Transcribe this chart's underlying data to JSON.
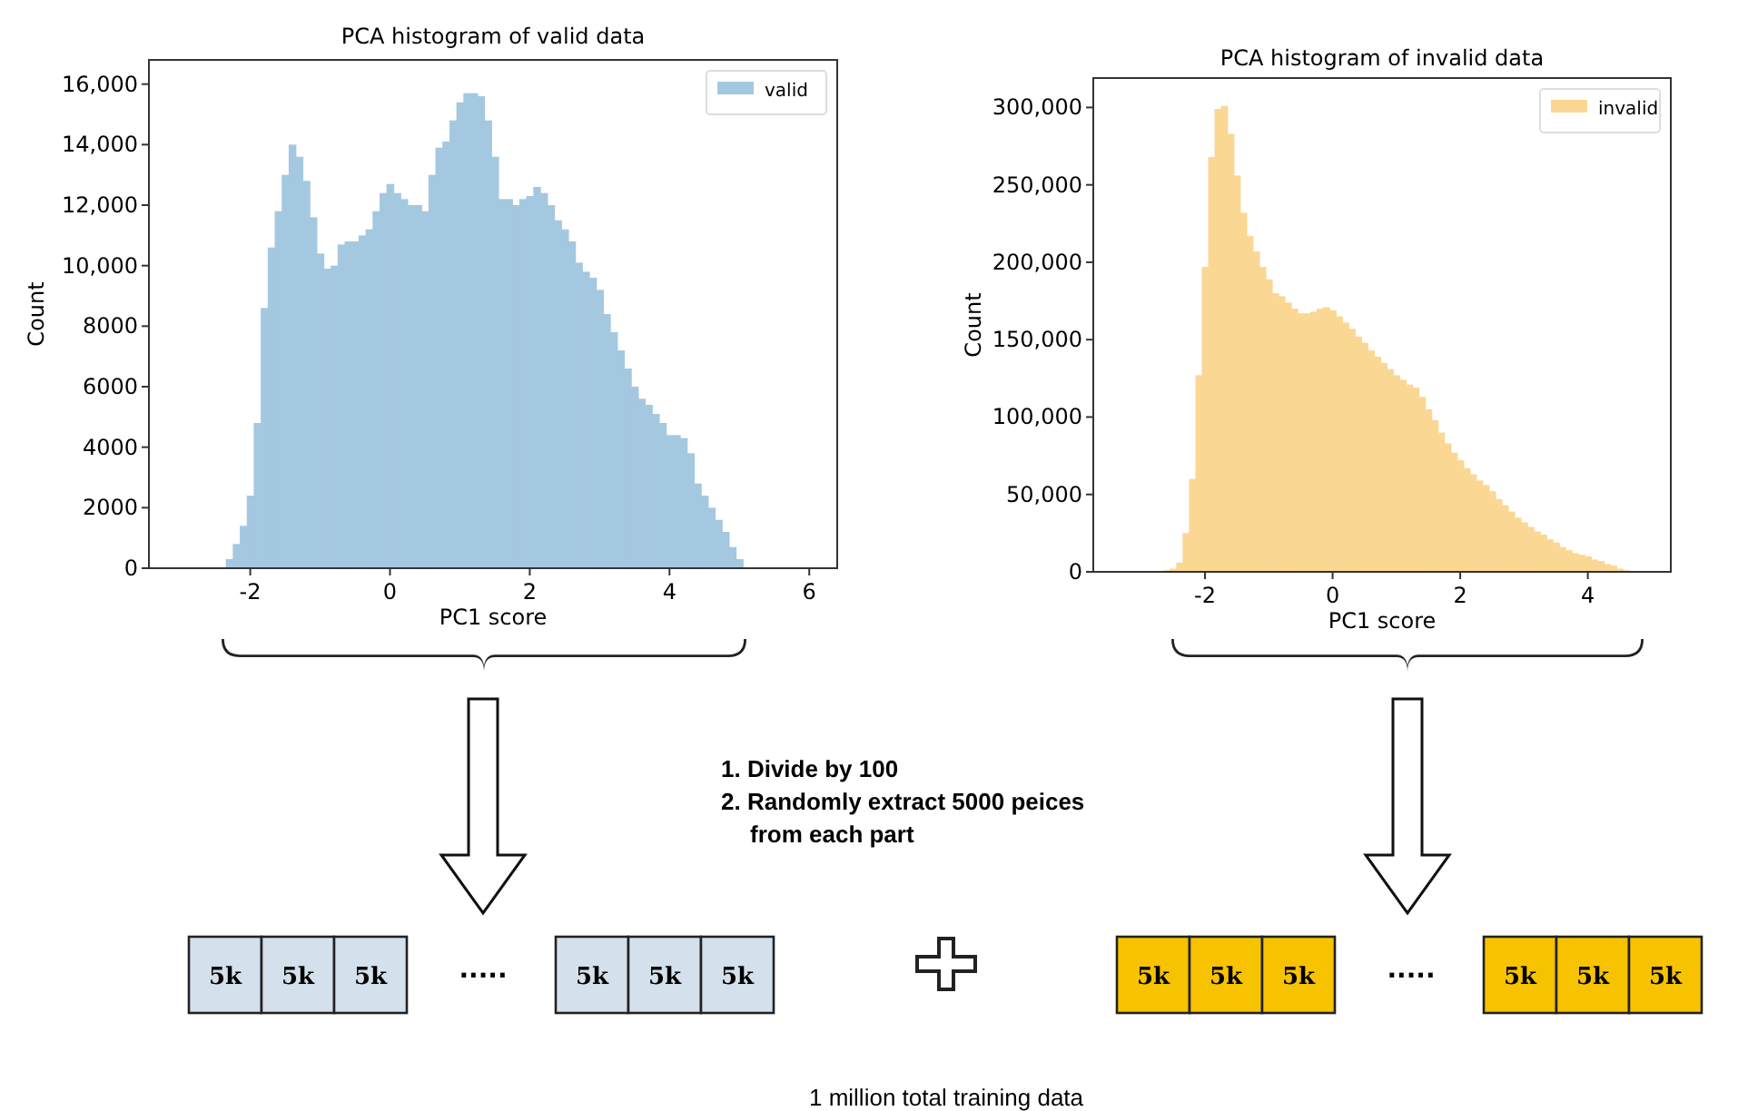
{
  "chart_data": [
    {
      "type": "histogram",
      "title": "PCA histogram of valid data",
      "xlabel": "PC1 score",
      "ylabel": "Count",
      "legend": "top right",
      "bins": [
        -2.45,
        -2.35,
        -2.25,
        -2.15,
        -2.05,
        -1.95,
        -1.85,
        -1.75,
        -1.65,
        -1.55,
        -1.45,
        -1.35,
        -1.25,
        -1.15,
        -1.05,
        -0.95,
        -0.85,
        -0.75,
        -0.65,
        -0.55,
        -0.45,
        -0.35,
        -0.25,
        -0.15,
        -0.05,
        0.05,
        0.15,
        0.25,
        0.35,
        0.45,
        0.55,
        0.65,
        0.75,
        0.85,
        0.95,
        1.05,
        1.15,
        1.25,
        1.35,
        1.45,
        1.55,
        1.65,
        1.75,
        1.85,
        1.95,
        2.05,
        2.15,
        2.25,
        2.35,
        2.45,
        2.55,
        2.65,
        2.75,
        2.85,
        2.95,
        3.05,
        3.15,
        3.25,
        3.35,
        3.45,
        3.55,
        3.65,
        3.75,
        3.85,
        3.95,
        4.05,
        4.15,
        4.25,
        4.35,
        4.45,
        4.55,
        4.65,
        4.75,
        4.85,
        4.95,
        5.05,
        5.15,
        5.25
      ],
      "series": [
        {
          "name": "valid",
          "color": "#a5c8e1",
          "values": [
            0,
            300,
            800,
            1400,
            2400,
            4800,
            8600,
            10600,
            11800,
            13000,
            14000,
            13600,
            12800,
            11600,
            10400,
            9900,
            10000,
            10700,
            10800,
            10800,
            11000,
            11200,
            11800,
            12400,
            12700,
            12400,
            12200,
            12000,
            12000,
            11800,
            13000,
            13900,
            14100,
            14800,
            15400,
            15700,
            15700,
            15600,
            14800,
            13600,
            12200,
            12200,
            12000,
            12200,
            12300,
            12600,
            12400,
            12000,
            11500,
            11200,
            10800,
            10100,
            9800,
            9600,
            9200,
            8400,
            7800,
            7200,
            6600,
            6000,
            5600,
            5400,
            5100,
            4800,
            4400,
            4400,
            4300,
            3800,
            2800,
            2400,
            2000,
            1600,
            1200,
            700,
            300,
            0,
            0
          ]
        }
      ],
      "xlim": [
        -3.45,
        6.4
      ],
      "xticks": [
        -2,
        0,
        2,
        4,
        6
      ],
      "ylim": [
        0,
        16800
      ],
      "yticks": [
        0,
        2000,
        4000,
        6000,
        8000,
        {
          "value": 10000,
          "label": "10,000"
        },
        {
          "value": 12000,
          "label": "12,000"
        },
        {
          "value": 14000,
          "label": "14,000"
        },
        {
          "value": 16000,
          "label": "16,000"
        }
      ]
    },
    {
      "type": "histogram",
      "title": "PCA histogram of invalid data",
      "xlabel": "PC1 score",
      "ylabel": "Count",
      "legend": "top right",
      "bins": [
        -2.65,
        -2.55,
        -2.45,
        -2.35,
        -2.25,
        -2.15,
        -2.05,
        -1.95,
        -1.85,
        -1.75,
        -1.65,
        -1.55,
        -1.45,
        -1.35,
        -1.25,
        -1.15,
        -1.05,
        -0.95,
        -0.85,
        -0.75,
        -0.65,
        -0.55,
        -0.45,
        -0.35,
        -0.25,
        -0.15,
        -0.05,
        0.05,
        0.15,
        0.25,
        0.35,
        0.45,
        0.55,
        0.65,
        0.75,
        0.85,
        0.95,
        1.05,
        1.15,
        1.25,
        1.35,
        1.45,
        1.55,
        1.65,
        1.75,
        1.85,
        1.95,
        2.05,
        2.15,
        2.25,
        2.35,
        2.45,
        2.55,
        2.65,
        2.75,
        2.85,
        2.95,
        3.05,
        3.15,
        3.25,
        3.35,
        3.45,
        3.55,
        3.65,
        3.75,
        3.85,
        3.95,
        4.05,
        4.15,
        4.25,
        4.35,
        4.45,
        4.55,
        4.65,
        4.75
      ],
      "series": [
        {
          "name": "invalid",
          "color": "#fbd794",
          "values": [
            1000,
            2000,
            6000,
            25000,
            60000,
            127000,
            197000,
            268000,
            299000,
            301000,
            283000,
            256000,
            232000,
            217000,
            207000,
            197000,
            189000,
            180000,
            178000,
            174000,
            170000,
            167000,
            167000,
            168000,
            170000,
            171000,
            169000,
            165000,
            161000,
            157000,
            152000,
            148000,
            143000,
            139000,
            135000,
            131000,
            127000,
            124000,
            121000,
            119000,
            113000,
            105000,
            98000,
            90000,
            83000,
            77000,
            72000,
            67000,
            63000,
            59000,
            56000,
            52000,
            47000,
            43000,
            39000,
            35000,
            32000,
            29000,
            26000,
            24000,
            21000,
            19000,
            16000,
            14000,
            12000,
            11000,
            10000,
            8000,
            7000,
            5000,
            4000,
            2000,
            1000,
            0
          ]
        }
      ],
      "xlim": [
        -3.75,
        5.3
      ],
      "xticks": [
        -2,
        0,
        2,
        4
      ],
      "ylim": [
        0,
        319000
      ],
      "yticks": [
        0,
        {
          "value": 50000,
          "label": "50,000"
        },
        {
          "value": 100000,
          "label": "100,000"
        },
        {
          "value": 150000,
          "label": "150,000"
        },
        {
          "value": 200000,
          "label": "200,000"
        },
        {
          "value": 250000,
          "label": "250,000"
        },
        {
          "value": 300000,
          "label": "300,000"
        }
      ]
    },
    {
      "type": "other",
      "colors": [
        "#d4e0ec",
        "#f7c300"
      ],
      "annotations": [
        "1. Divide by 100",
        "2. Randomly extract 5000 peices from each part",
        "1 million total training data",
        "5k",
        "·····"
      ]
    }
  ]
}
